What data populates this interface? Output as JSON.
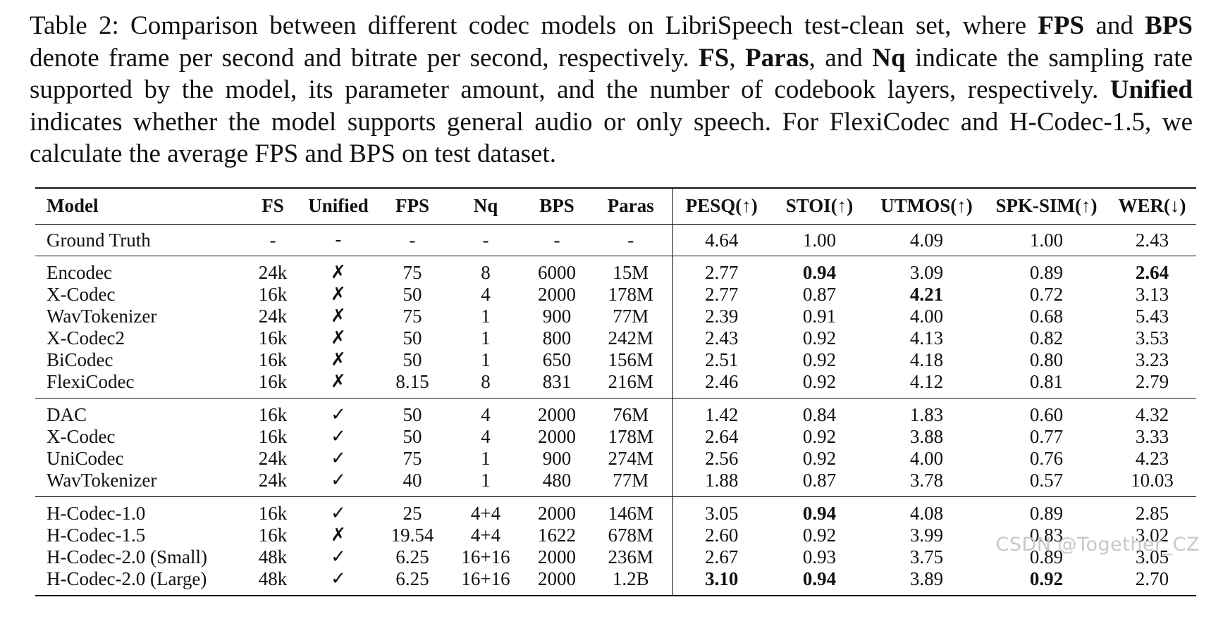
{
  "caption": {
    "p01": "Table 2: Comparison between different codec models on LibriSpeech test-clean set, where ",
    "b01": "FPS",
    "p02": " and ",
    "b02": "BPS",
    "p03": " denote frame per second and bitrate per second, respectively. ",
    "b03": "FS",
    "p04": ", ",
    "b04": "Paras",
    "p05": ", and ",
    "b05": "Nq",
    "p06": " indicate the sampling rate supported by the model, its parameter amount, and the number of codebook layers, respectively. ",
    "b06": "Unified",
    "p07": " indicates whether the model supports general audio or only speech. For FlexiCodec and H-Codec-1.5, we calculate the average FPS and BPS on test dataset."
  },
  "table": {
    "headers": {
      "model": "Model",
      "fs": "FS",
      "unified": "Unified",
      "fps": "FPS",
      "nq": "Nq",
      "bps": "BPS",
      "paras": "Paras",
      "pesq": "PESQ(↑)",
      "stoi": "STOI(↑)",
      "utmos": "UTMOS(↑)",
      "spk": "SPK-SIM(↑)",
      "wer": "WER(↓)"
    },
    "rows": [
      [
        "Ground Truth",
        "-",
        "-",
        "-",
        "-",
        "-",
        "-",
        "4.64",
        "1.00",
        "4.09",
        "1.00",
        "2.43"
      ],
      [
        "Encodec",
        "24k",
        "✗",
        "75",
        "8",
        "6000",
        "15M",
        "2.77",
        "0.94",
        "3.09",
        "0.89",
        "2.64"
      ],
      [
        "X-Codec",
        "16k",
        "✗",
        "50",
        "4",
        "2000",
        "178M",
        "2.77",
        "0.87",
        "4.21",
        "0.72",
        "3.13"
      ],
      [
        "WavTokenizer",
        "24k",
        "✗",
        "75",
        "1",
        "900",
        "77M",
        "2.39",
        "0.91",
        "4.00",
        "0.68",
        "5.43"
      ],
      [
        "X-Codec2",
        "16k",
        "✗",
        "50",
        "1",
        "800",
        "242M",
        "2.43",
        "0.92",
        "4.13",
        "0.82",
        "3.53"
      ],
      [
        "BiCodec",
        "16k",
        "✗",
        "50",
        "1",
        "650",
        "156M",
        "2.51",
        "0.92",
        "4.18",
        "0.80",
        "3.23"
      ],
      [
        "FlexiCodec",
        "16k",
        "✗",
        "8.15",
        "8",
        "831",
        "216M",
        "2.46",
        "0.92",
        "4.12",
        "0.81",
        "2.79"
      ],
      [
        "DAC",
        "16k",
        "✓",
        "50",
        "4",
        "2000",
        "76M",
        "1.42",
        "0.84",
        "1.83",
        "0.60",
        "4.32"
      ],
      [
        "X-Codec",
        "16k",
        "✓",
        "50",
        "4",
        "2000",
        "178M",
        "2.64",
        "0.92",
        "3.88",
        "0.77",
        "3.33"
      ],
      [
        "UniCodec",
        "24k",
        "✓",
        "75",
        "1",
        "900",
        "274M",
        "2.56",
        "0.92",
        "4.00",
        "0.76",
        "4.23"
      ],
      [
        "WavTokenizer",
        "24k",
        "✓",
        "40",
        "1",
        "480",
        "77M",
        "1.88",
        "0.87",
        "3.78",
        "0.57",
        "10.03"
      ],
      [
        "H-Codec-1.0",
        "16k",
        "✓",
        "25",
        "4+4",
        "2000",
        "146M",
        "3.05",
        "0.94",
        "4.08",
        "0.89",
        "2.85"
      ],
      [
        "H-Codec-1.5",
        "16k",
        "✗",
        "19.54",
        "4+4",
        "1622",
        "678M",
        "2.60",
        "0.92",
        "3.99",
        "0.83",
        "3.02"
      ],
      [
        "H-Codec-2.0 (Small)",
        "48k",
        "✓",
        "6.25",
        "16+16",
        "2000",
        "236M",
        "2.67",
        "0.93",
        "3.75",
        "0.89",
        "3.05"
      ],
      [
        "H-Codec-2.0 (Large)",
        "48k",
        "✓",
        "6.25",
        "16+16",
        "2000",
        "1.2B",
        "3.10",
        "0.94",
        "3.89",
        "0.92",
        "2.70"
      ]
    ]
  },
  "watermark": "CSDN @Together_CZ"
}
